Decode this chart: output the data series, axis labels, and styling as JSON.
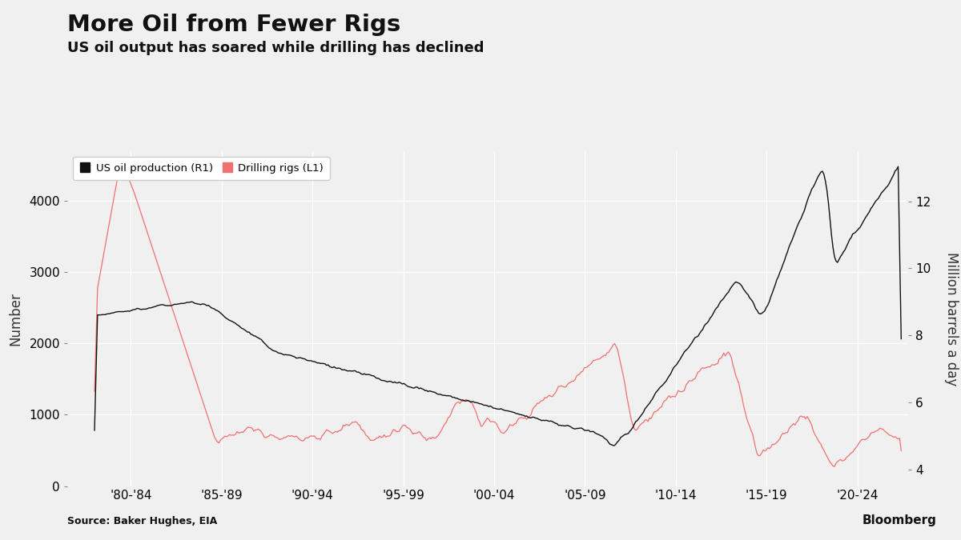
{
  "title": "More Oil from Fewer Rigs",
  "subtitle": "US oil output has soared while drilling has declined",
  "source": "Source: Baker Hughes, EIA",
  "legend_labels": [
    "US oil production (R1)",
    "Drilling rigs (L1)"
  ],
  "rig_color": "#F07070",
  "prod_color": "#111111",
  "background_color": "#F0F0F0",
  "grid_color": "#FFFFFF",
  "ylabel_left": "Number",
  "ylabel_right": "Million barrels a day",
  "ylim_left": [
    0,
    4700
  ],
  "ylim_right": [
    3.5,
    13.5
  ],
  "yticks_left": [
    0,
    1000,
    2000,
    3000,
    4000
  ],
  "yticks_right": [
    4,
    6,
    8,
    10,
    12
  ],
  "xtick_positions": [
    1982,
    1987,
    1992,
    1997,
    2002,
    2007,
    2012,
    2017,
    2022
  ],
  "xtick_labels": [
    "'80-'84",
    "'85-'89",
    "'90-'94",
    "'95-'99",
    "'00-'04",
    "'05-'09",
    "'10-'14",
    "'15-'19",
    "'20-'24"
  ],
  "xlim": [
    1978.5,
    2024.8
  ],
  "title_fontsize": 21,
  "subtitle_fontsize": 13,
  "tick_fontsize": 11,
  "label_fontsize": 12
}
